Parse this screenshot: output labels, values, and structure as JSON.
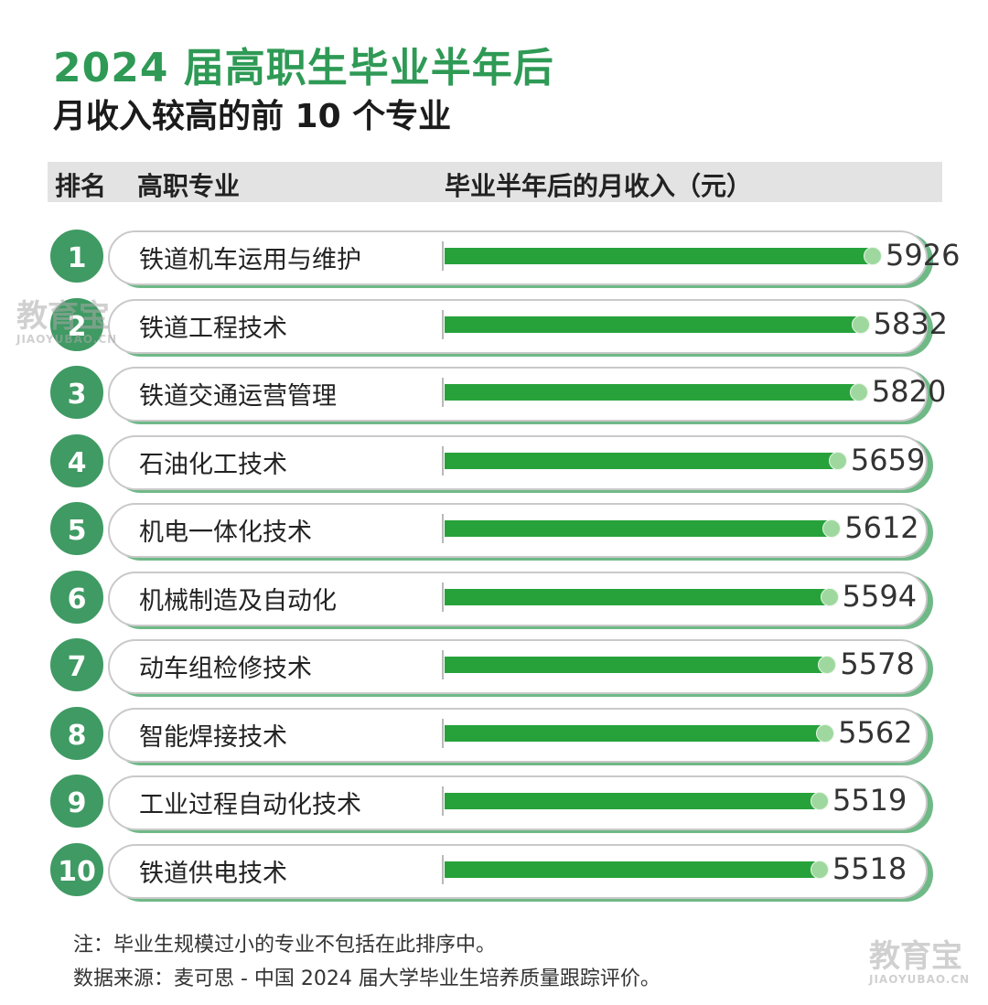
{
  "title": "2024 届高职生毕业半年后",
  "subtitle": "月收入较高的前 10 个专业",
  "header": {
    "rank": "排名",
    "major": "高职专业",
    "income": "毕业半年后的月收入（元）"
  },
  "chart_data": {
    "type": "bar",
    "orientation": "horizontal",
    "categories": [
      "铁道机车运用与维护",
      "铁道工程技术",
      "铁道交通运营管理",
      "石油化工技术",
      "机电一体化技术",
      "机械制造及自动化",
      "动车组检修技术",
      "智能焊接技术",
      "工业过程自动化技术",
      "铁道供电技术"
    ],
    "ranks": [
      "1",
      "2",
      "3",
      "4",
      "5",
      "6",
      "7",
      "8",
      "9",
      "10"
    ],
    "values": [
      5926,
      5832,
      5820,
      5659,
      5612,
      5594,
      5578,
      5562,
      5519,
      5518
    ],
    "title": "2024 届高职生毕业半年后",
    "xlabel": "",
    "ylabel": "",
    "bar_color": "#27a23b",
    "rank_color": "#3f9a63",
    "title_color": "#2e9a55"
  },
  "notes": {
    "note": "注：毕业生规模过小的专业不包括在此排序中。",
    "source": "数据来源：麦可思 - 中国 2024 届大学毕业生培养质量跟踪评价。"
  },
  "watermark": {
    "cn": "教育宝",
    "en": "JIAOYUBAO.CN"
  }
}
